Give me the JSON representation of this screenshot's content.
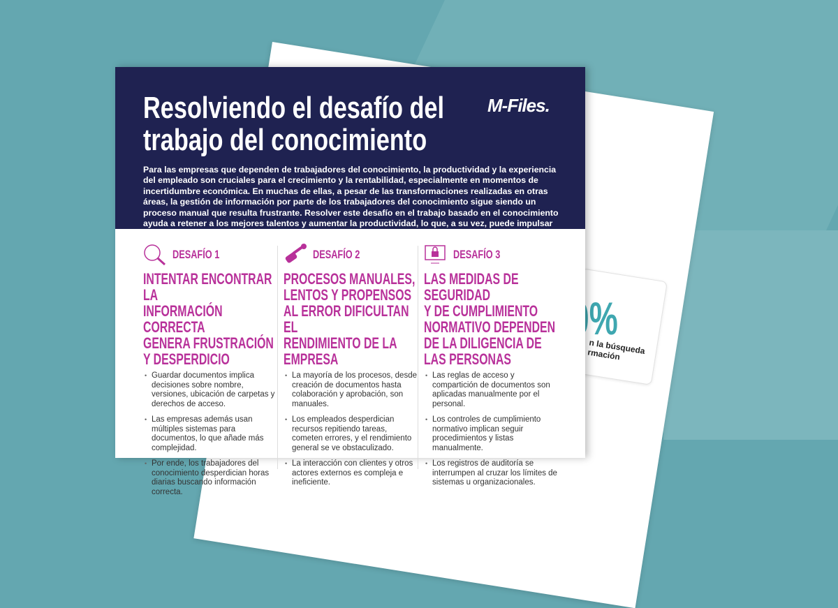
{
  "doc": {
    "title_line1": "Resolviendo el desafío del",
    "title_line2": "trabajo del conocimiento",
    "logo": "M-Files.",
    "intro": "Para las empresas que dependen de trabajadores del conocimiento, la productividad y la experiencia del empleado son cruciales para el crecimiento y la rentabilidad, especialmente en momentos de incertidumbre económica. En muchas de ellas, a pesar de las transformaciones realizadas en otras áreas, la gestión de información por parte de los trabajadores del conocimiento sigue siendo un proceso manual que resulta frustrante. Resolver este desafío en el trabajo basado en el conocimiento ayuda a retener a los mejores talentos y aumentar la productividad, lo que, a su vez, puede impulsar los resultados empresariales.",
    "columns": [
      {
        "label": "DESAFÍO 1",
        "icon": "magnifier-icon",
        "title": "INTENTAR ENCONTRAR LA\nINFORMACIÓN CORRECTA\nGENERA FRUSTRACIÓN\nY DESPERDICIO",
        "bullets": [
          "Guardar documentos implica decisiones sobre nombre, versiones, ubicación de carpetas y derechos de acceso.",
          "Las empresas además usan múltiples sistemas para documentos, lo que añade más complejidad.",
          "Por ende, los trabajadores del conocimiento desperdician horas diarias buscando información correcta."
        ]
      },
      {
        "label": "DESAFÍO 2",
        "icon": "wrench-hand-icon",
        "title": "PROCESOS MANUALES,\nLENTOS Y PROPENSOS\nAL ERROR DIFICULTAN EL\nRENDIMIENTO DE LA EMPRESA",
        "bullets": [
          "La mayoría de los procesos, desde creación de documentos hasta colaboración y aprobación, son manuales.",
          "Los empleados desperdician recursos repitiendo tareas, cometen errores, y el rendimiento general se ve obstaculizado.",
          "La interacción con clientes y otros actores externos es compleja e ineficiente."
        ]
      },
      {
        "label": "DESAFÍO 3",
        "icon": "lock-monitor-icon",
        "title": "LAS MEDIDAS DE SEGURIDAD\nY DE CUMPLIMIENTO\nNORMATIVO DEPENDEN\nDE LA DILIGENCIA DE\nLAS PERSONAS",
        "bullets": [
          "Las reglas de acceso y compartición de documentos son aplicadas manualmente por el personal.",
          "Los controles de cumplimiento normativo implican seguir procedimientos y listas manualmente.",
          "Los registros de auditoría se interrumpen al cruzar los límites de sistemas u organizacionales."
        ]
      }
    ]
  },
  "back_card": {
    "value": "0%",
    "text_line1": "n la búsqueda",
    "text_line2": "rmación"
  },
  "colors": {
    "navy": "#1f2251",
    "magenta": "#b8319a",
    "teal": "#64a7b0"
  }
}
